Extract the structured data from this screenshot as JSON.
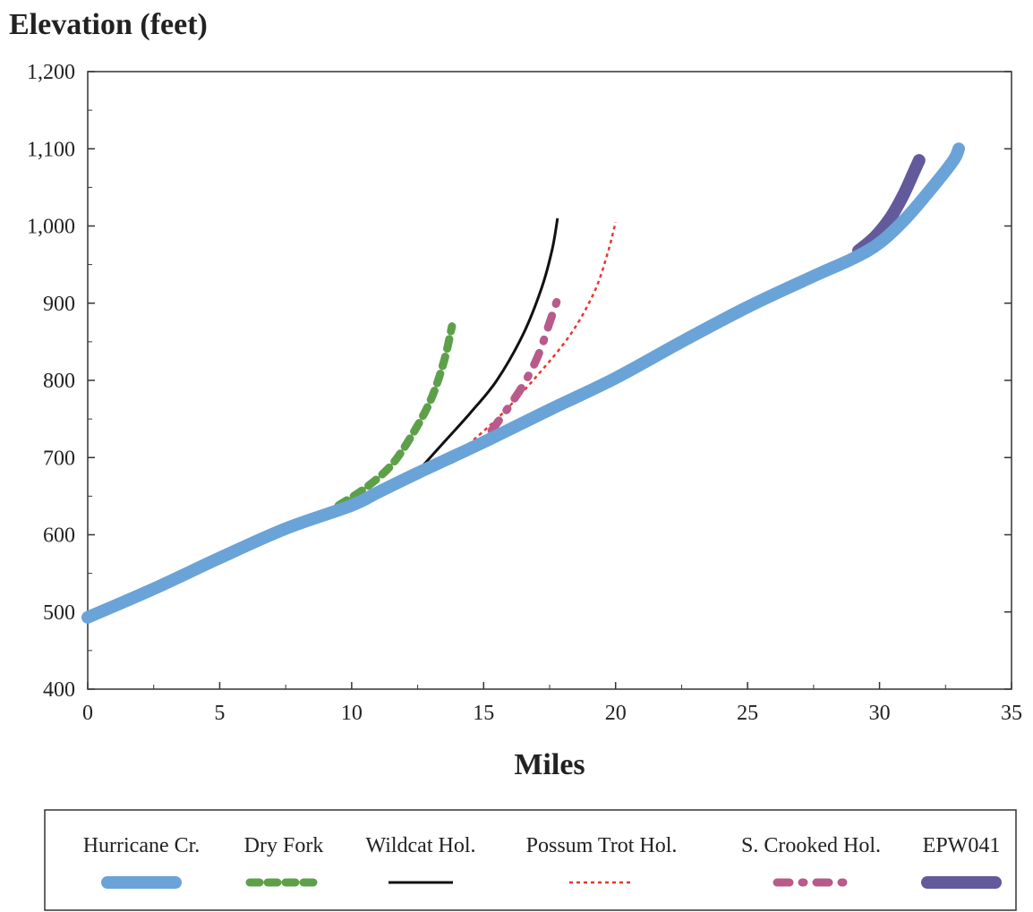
{
  "chart_data": {
    "type": "line",
    "ylabel": "Elevation (feet)",
    "xlabel": "Miles",
    "xlim": [
      0,
      35
    ],
    "ylim": [
      400,
      1200
    ],
    "x_ticks": [
      0,
      5,
      10,
      15,
      20,
      25,
      30,
      35
    ],
    "x_tick_labels": [
      "0",
      "5",
      "10",
      "15",
      "20",
      "25",
      "30",
      "35"
    ],
    "y_ticks": [
      400,
      500,
      600,
      700,
      800,
      900,
      1000,
      1100,
      1200
    ],
    "y_tick_labels": [
      "400",
      "500",
      "600",
      "700",
      "800",
      "900",
      "1,000",
      "1,100",
      "1,200"
    ],
    "grid": false,
    "legend_position": "bottom",
    "series": [
      {
        "name": "Hurricane Cr.",
        "color": "#6aa3d8",
        "style": "thick-solid",
        "x": [
          0,
          2.5,
          5,
          7.5,
          10,
          11,
          12.5,
          15,
          17.5,
          20,
          22.5,
          25,
          27.5,
          29,
          30,
          31,
          32,
          32.8,
          33
        ],
        "y": [
          493,
          530,
          570,
          608,
          638,
          655,
          680,
          720,
          762,
          803,
          850,
          895,
          935,
          958,
          978,
          1010,
          1050,
          1085,
          1100
        ]
      },
      {
        "name": "Dry Fork",
        "color": "#5ea04a",
        "style": "thick-dashed",
        "x": [
          9.5,
          10.5,
          11.5,
          12.3,
          13,
          13.5,
          13.8
        ],
        "y": [
          638,
          660,
          690,
          730,
          775,
          825,
          870
        ]
      },
      {
        "name": "Wildcat Hol.",
        "color": "#111111",
        "style": "thin-solid",
        "x": [
          12.5,
          13.5,
          14.5,
          15.5,
          16.5,
          17.2,
          17.6,
          17.8
        ],
        "y": [
          682,
          720,
          758,
          800,
          860,
          920,
          970,
          1010
        ]
      },
      {
        "name": "Possum Trot Hol.",
        "color": "#e8352f",
        "style": "thin-dotted",
        "x": [
          14,
          15.5,
          17,
          18.3,
          19.2,
          19.7,
          20
        ],
        "y": [
          705,
          750,
          805,
          860,
          915,
          965,
          1005
        ]
      },
      {
        "name": "S. Crooked Hol.",
        "color": "#b85a8a",
        "style": "dash-dot",
        "x": [
          15.3,
          16,
          16.6,
          17.1,
          17.5,
          17.8
        ],
        "y": [
          735,
          768,
          800,
          835,
          875,
          905
        ]
      },
      {
        "name": "EPW041",
        "color": "#635a9c",
        "style": "thick-solid",
        "x": [
          29.2,
          29.8,
          30.4,
          30.9,
          31.3,
          31.5
        ],
        "y": [
          968,
          985,
          1010,
          1040,
          1070,
          1085
        ]
      }
    ]
  }
}
